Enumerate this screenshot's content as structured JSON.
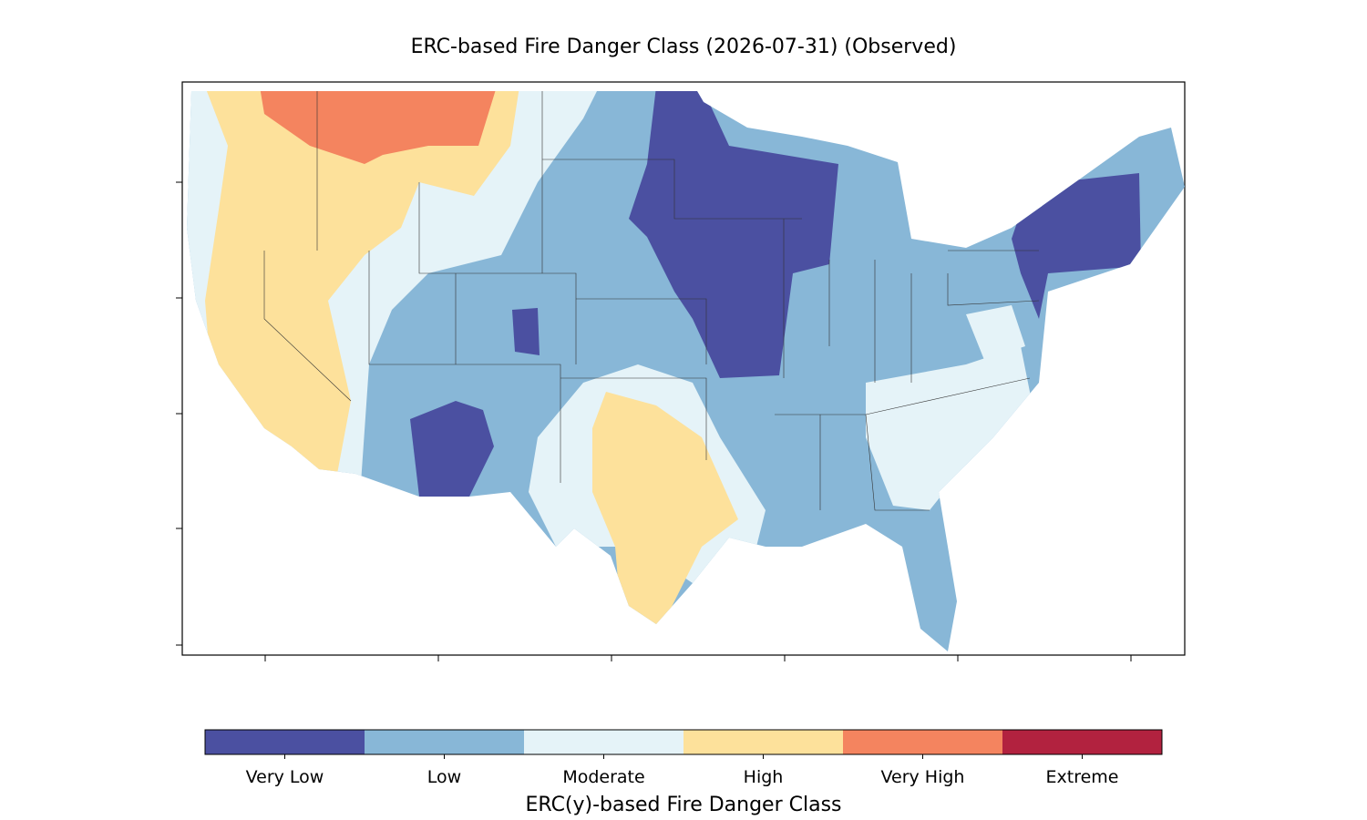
{
  "title": "ERC-based Fire Danger Class (2026-07-31) (Observed)",
  "legend": {
    "title": "ERC(y)-based Fire Danger Class",
    "classes": [
      {
        "label": "Very Low",
        "color": "#4b50a1"
      },
      {
        "label": "Low",
        "color": "#88b7d7"
      },
      {
        "label": "Moderate",
        "color": "#e5f3f8"
      },
      {
        "label": "High",
        "color": "#fde19b"
      },
      {
        "label": "Very High",
        "color": "#f4845f"
      },
      {
        "label": "Extreme",
        "color": "#b2223f"
      }
    ]
  }
}
